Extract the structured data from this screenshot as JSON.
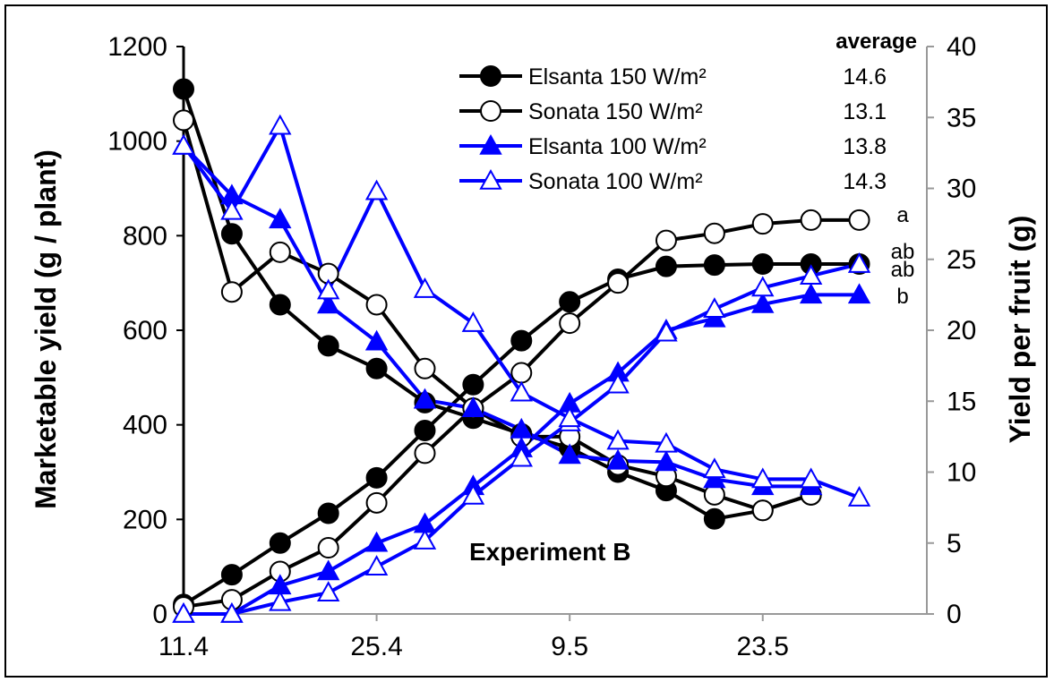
{
  "chart_data": {
    "type": "line",
    "title": "",
    "annotation": "Experiment B",
    "ylabel_left": "Marketable yield (g / plant)",
    "ylabel_right": "Yield per fruit (g)",
    "xlabel": "",
    "x_tick_labels": [
      "11.4",
      "25.4",
      "9.5",
      "23.5"
    ],
    "x_tick_positions": [
      1,
      5,
      9,
      13
    ],
    "xlim": [
      1,
      16.4
    ],
    "ylim_left": [
      0,
      1200
    ],
    "ylim_right": [
      0,
      40
    ],
    "y_ticks_left": [
      "0",
      "200",
      "400",
      "600",
      "800",
      "1000",
      "1200"
    ],
    "y_ticks_right": [
      "0",
      "5",
      "10",
      "15",
      "20",
      "25",
      "30",
      "35",
      "40"
    ],
    "legend_position": "top-right",
    "average_header": "average",
    "series": [
      {
        "name": "Elsanta 150 W/m²",
        "color": "#000000",
        "marker": "circle-filled",
        "average": "14.6",
        "cumulative_yield": [
          20,
          83,
          150,
          213,
          288,
          388,
          485,
          578,
          660,
          708,
          735,
          738,
          740,
          740,
          740
        ],
        "yield_per_fruit": [
          37,
          26.8,
          21.8,
          18.9,
          17.3,
          14.9,
          13.8,
          12.7,
          11.7,
          10,
          8.7,
          6.7,
          7.3,
          8.4,
          null
        ]
      },
      {
        "name": "Sonata 150 W/m²",
        "color": "#000000",
        "marker": "circle-open",
        "average": "13.1",
        "cumulative_yield": [
          15,
          30,
          90,
          140,
          235,
          340,
          435,
          510,
          615,
          700,
          790,
          805,
          825,
          833,
          833
        ],
        "yield_per_fruit": [
          34.8,
          22.7,
          25.5,
          24,
          21.8,
          17.3,
          14.5,
          12.5,
          12.5,
          10.5,
          9.7,
          8.4,
          7.3,
          8.4,
          null
        ]
      },
      {
        "name": "Elsanta 100 W/m²",
        "color": "#0000ff",
        "marker": "triangle-filled",
        "average": "13.8",
        "cumulative_yield": [
          0,
          0,
          60,
          90,
          150,
          190,
          270,
          350,
          445,
          510,
          600,
          625,
          655,
          675,
          675
        ],
        "yield_per_fruit": [
          33,
          29.5,
          27.8,
          21.8,
          19.2,
          15.1,
          14.5,
          13,
          11.2,
          10.8,
          10.7,
          9.5,
          9,
          9,
          null
        ]
      },
      {
        "name": "Sonata 100 W/m²",
        "color": "#0000ff",
        "marker": "triangle-open",
        "average": "14.3",
        "cumulative_yield": [
          0,
          0,
          25,
          45,
          100,
          155,
          250,
          330,
          405,
          485,
          595,
          645,
          690,
          715,
          740
        ],
        "yield_per_fruit": [
          33,
          28.4,
          34.4,
          22.8,
          29.8,
          22.9,
          20.5,
          15.6,
          13.8,
          12.2,
          12,
          10.2,
          9.5,
          9.5,
          8.2
        ]
      }
    ],
    "end_labels": [
      "a",
      "ab",
      "ab",
      "b"
    ]
  }
}
